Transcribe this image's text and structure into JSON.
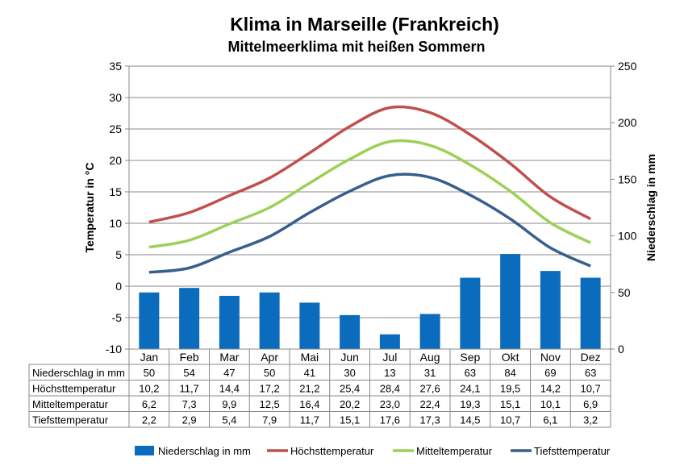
{
  "title": "Klima in Marseille (Frankreich)",
  "subtitle": "Mittelmeerklima mit heißen Sommern",
  "chart_data": {
    "type": "bar",
    "title": "Klima in Marseille (Frankreich)",
    "subtitle": "Mittelmeerklima mit heißen Sommern",
    "categories": [
      "Jan",
      "Feb",
      "Mar",
      "Apr",
      "Mai",
      "Jun",
      "Jul",
      "Aug",
      "Sep",
      "Okt",
      "Nov",
      "Dez"
    ],
    "ylabel_left": "Temperatur in °C",
    "ylabel_right": "Niederschlag in mm",
    "ylim_left": [
      -10,
      35
    ],
    "ylim_right": [
      0,
      250
    ],
    "yticks_left": [
      "35",
      "30",
      "25",
      "20",
      "15",
      "10",
      "5",
      "0",
      "-5",
      "-10"
    ],
    "yticks_right": [
      "250",
      "200",
      "150",
      "100",
      "50",
      "0"
    ],
    "grid": true,
    "legend_position": "bottom",
    "series": [
      {
        "name": "Niederschlag in mm",
        "type": "bar",
        "axis": "right",
        "color": "#0b6cbd",
        "values": [
          50,
          54,
          47,
          50,
          41,
          30,
          13,
          31,
          63,
          84,
          69,
          63
        ],
        "labels": [
          "50",
          "54",
          "47",
          "50",
          "41",
          "30",
          "13",
          "31",
          "63",
          "84",
          "69",
          "63"
        ]
      },
      {
        "name": "Höchsttemperatur",
        "type": "line",
        "axis": "left",
        "color": "#c0504d",
        "values": [
          10.2,
          11.7,
          14.4,
          17.2,
          21.2,
          25.4,
          28.4,
          27.6,
          24.1,
          19.5,
          14.2,
          10.7
        ],
        "labels": [
          "10,2",
          "11,7",
          "14,4",
          "17,2",
          "21,2",
          "25,4",
          "28,4",
          "27,6",
          "24,1",
          "19,5",
          "14,2",
          "10,7"
        ]
      },
      {
        "name": "Mitteltemperatur",
        "type": "line",
        "axis": "left",
        "color": "#9bd157",
        "values": [
          6.2,
          7.3,
          9.9,
          12.5,
          16.4,
          20.2,
          23.0,
          22.4,
          19.3,
          15.1,
          10.1,
          6.9
        ],
        "labels": [
          "6,2",
          "7,3",
          "9,9",
          "12,5",
          "16,4",
          "20,2",
          "23,0",
          "22,4",
          "19,3",
          "15,1",
          "10,1",
          "6,9"
        ]
      },
      {
        "name": "Tiefsttemperatur",
        "type": "line",
        "axis": "left",
        "color": "#375f8c",
        "values": [
          2.2,
          2.9,
          5.4,
          7.9,
          11.7,
          15.1,
          17.6,
          17.3,
          14.5,
          10.7,
          6.1,
          3.2
        ],
        "labels": [
          "2,2",
          "2,9",
          "5,4",
          "7,9",
          "11,7",
          "15,1",
          "17,6",
          "17,3",
          "14,5",
          "10,7",
          "6,1",
          "3,2"
        ]
      }
    ]
  }
}
